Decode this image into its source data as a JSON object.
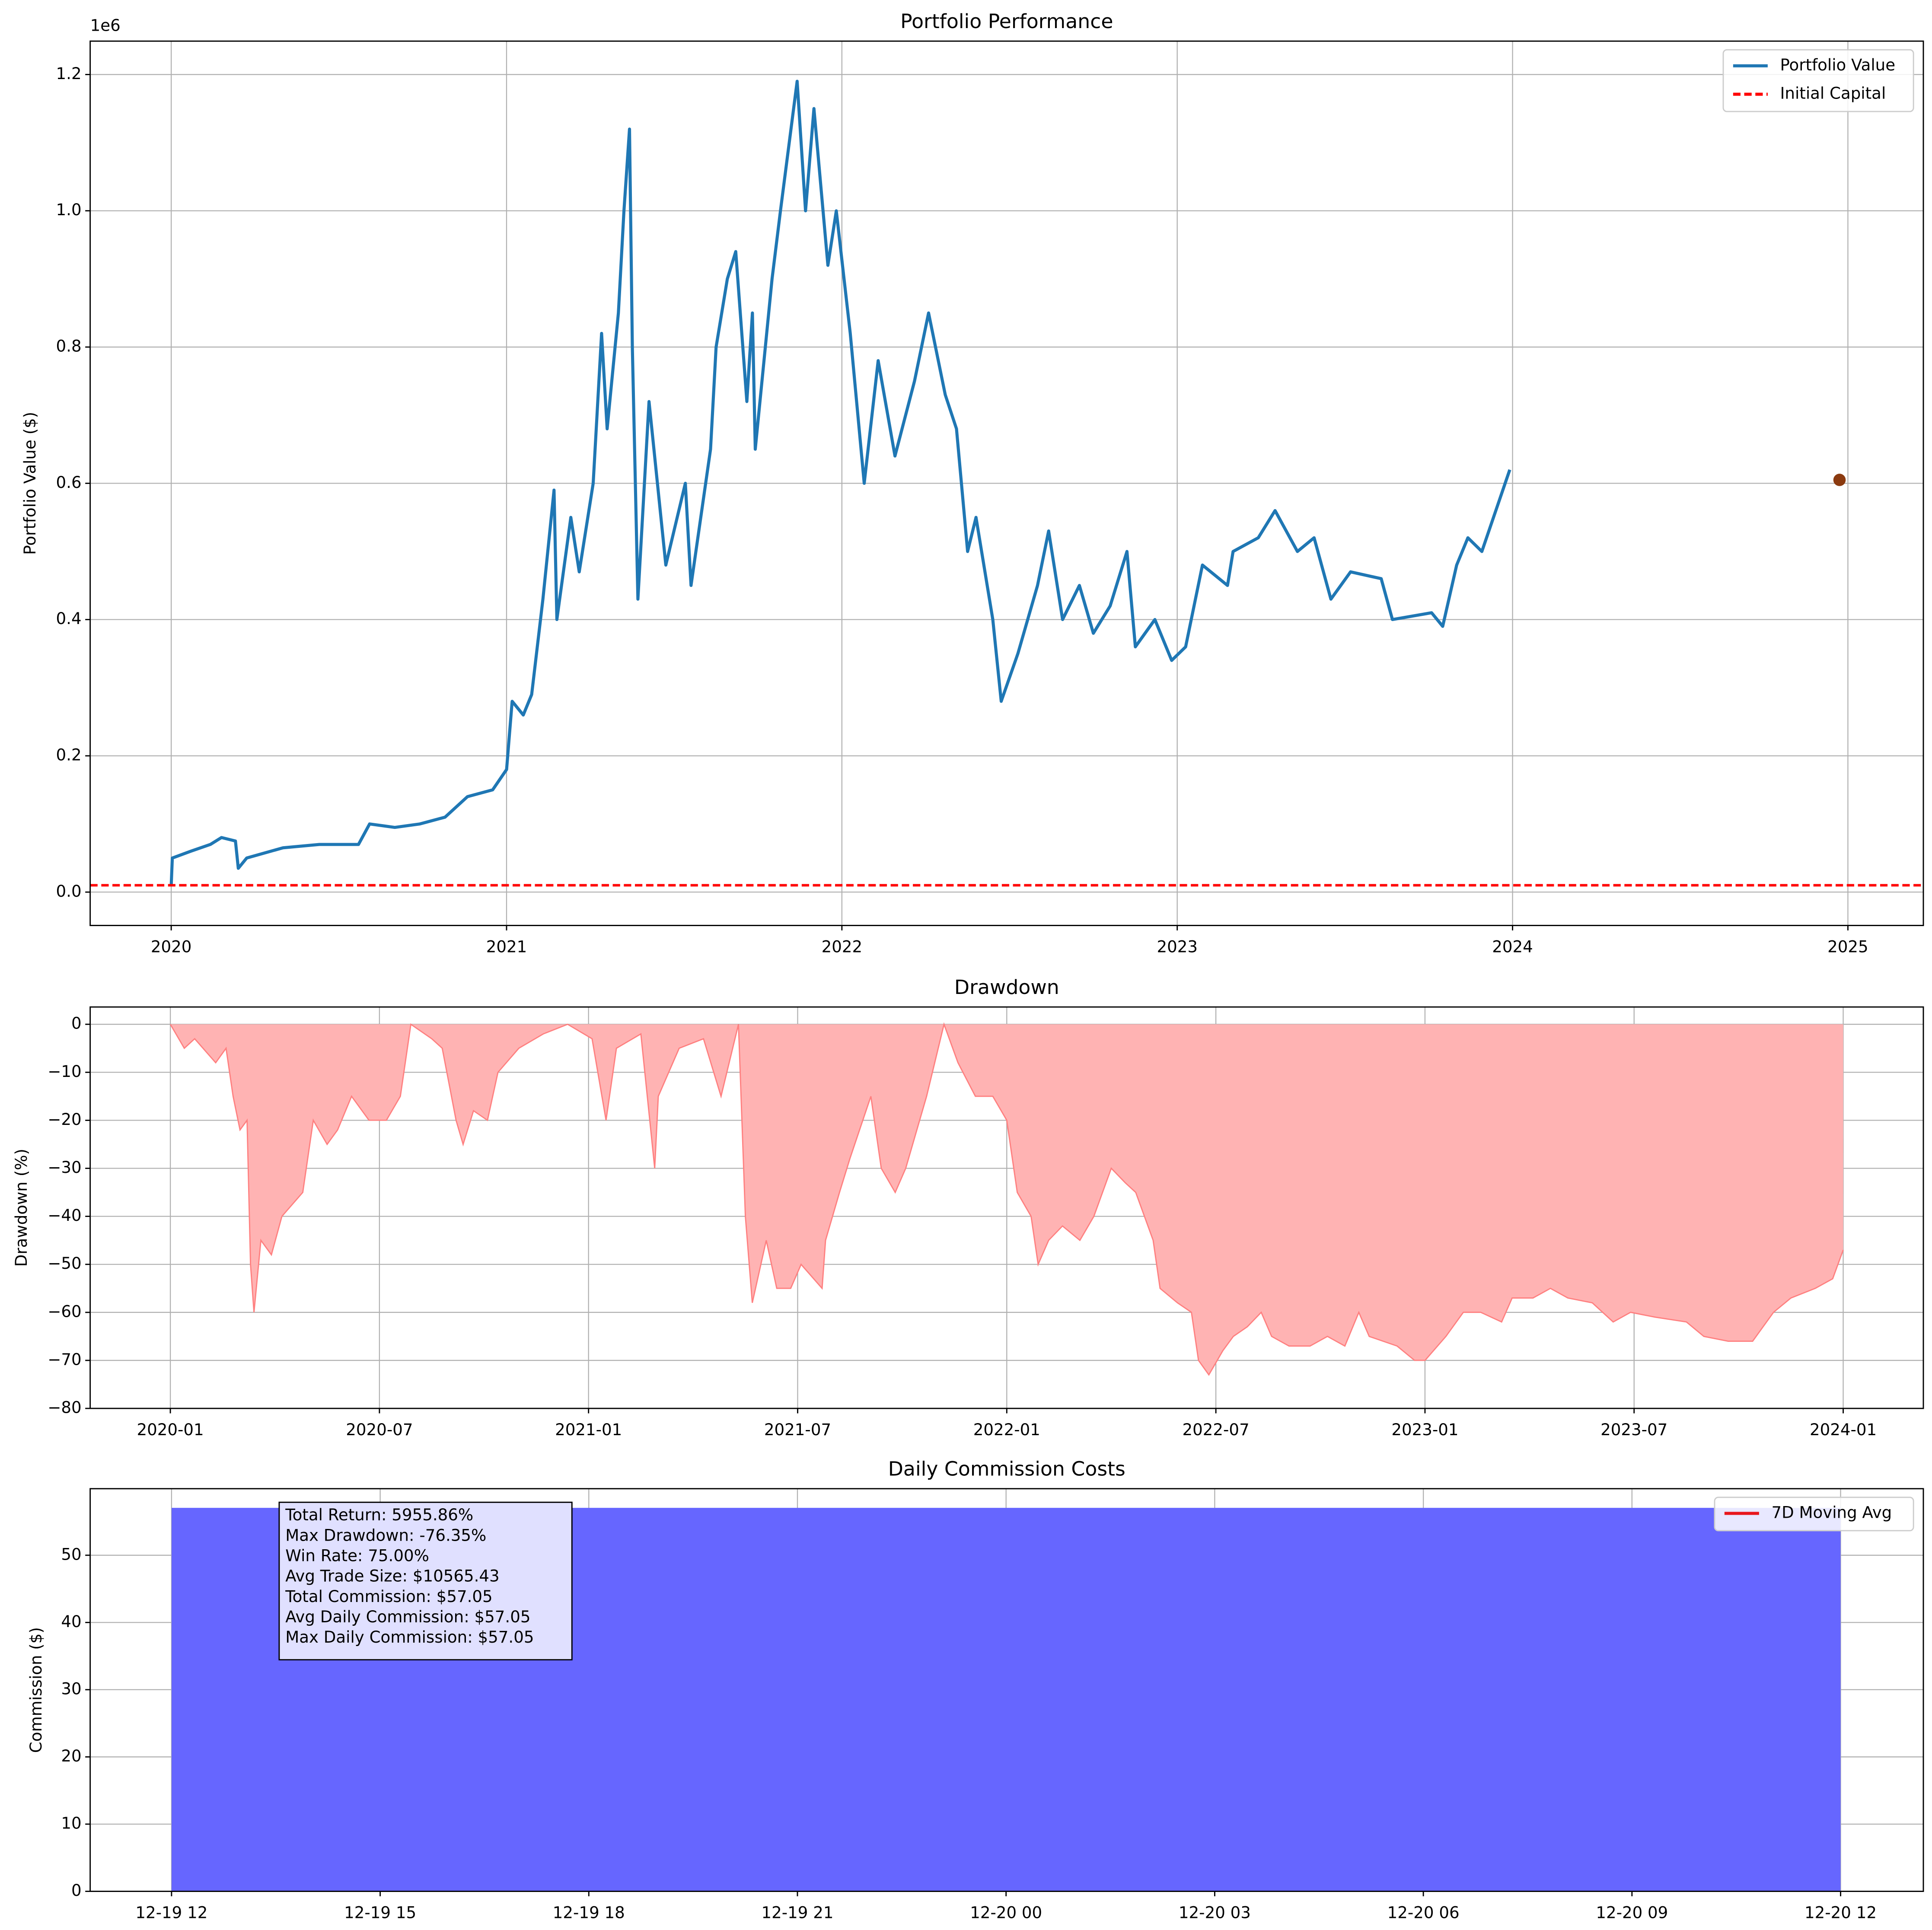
{
  "chart_data": [
    {
      "type": "line",
      "title": "Portfolio Performance",
      "y_label": "Portfolio Value ($)",
      "y_offset_label": "1e6",
      "x": [
        0,
        0.04,
        0.7,
        1.4,
        1.8,
        2.3,
        2.4,
        2.7,
        4.0,
        5.3,
        6.7,
        7.1,
        8.0,
        8.9,
        9.8,
        10.6,
        11.5,
        12.0,
        12.2,
        12.6,
        12.9,
        13.3,
        13.7,
        13.8,
        14.3,
        14.6,
        15.1,
        15.4,
        15.6,
        16.0,
        16.2,
        16.4,
        16.5,
        16.7,
        17.1,
        17.7,
        18.4,
        18.6,
        19.3,
        19.5,
        19.9,
        20.2,
        20.6,
        20.8,
        20.9,
        21.5,
        21.8,
        22.4,
        22.7,
        23.0,
        23.5,
        23.8,
        24.3,
        24.8,
        25.3,
        25.9,
        26.6,
        27.1,
        27.7,
        28.1,
        28.5,
        28.8,
        29.4,
        29.7,
        30.3,
        31.0,
        31.4,
        31.9,
        32.5,
        33.0,
        33.6,
        34.2,
        34.5,
        35.2,
        35.8,
        36.3,
        36.9,
        37.8,
        38.0,
        38.9,
        39.5,
        40.3,
        40.9,
        41.5,
        42.2,
        43.3,
        43.7,
        45.1,
        45.5,
        46.0,
        46.4,
        46.9,
        47.4,
        47.9
      ],
      "series": [
        {
          "name": "Portfolio Value",
          "color": "#1f77b4",
          "values": [
            10000,
            50000,
            60000,
            70000,
            80000,
            75000,
            35000,
            50000,
            65000,
            70000,
            70000,
            100000,
            95000,
            100000,
            110000,
            140000,
            150000,
            180000,
            280000,
            260000,
            290000,
            430000,
            590000,
            400000,
            550000,
            470000,
            600000,
            820000,
            680000,
            850000,
            1000000,
            1120000,
            800000,
            430000,
            720000,
            480000,
            600000,
            450000,
            650000,
            800000,
            900000,
            940000,
            720000,
            850000,
            650000,
            900000,
            1000000,
            1190000,
            1000000,
            1150000,
            920000,
            1000000,
            820000,
            600000,
            780000,
            640000,
            750000,
            850000,
            730000,
            680000,
            500000,
            550000,
            400000,
            280000,
            350000,
            450000,
            530000,
            400000,
            450000,
            380000,
            420000,
            500000,
            360000,
            400000,
            340000,
            360000,
            480000,
            450000,
            500000,
            520000,
            560000,
            500000,
            520000,
            430000,
            470000,
            460000,
            400000,
            410000,
            390000,
            480000,
            520000,
            500000,
            560000,
            620000
          ]
        },
        {
          "name": "Initial Capital",
          "color": "#ff0000",
          "line_style": "dashed",
          "y_value": 10000
        }
      ],
      "points": [
        {
          "x": 59.7,
          "y": 605000,
          "color": "#8b3a0f"
        }
      ],
      "xlim": [
        -2.9,
        62.7
      ],
      "xticks": [
        {
          "value": 0,
          "label": "2020"
        },
        {
          "value": 12,
          "label": "2021"
        },
        {
          "value": 24,
          "label": "2022"
        },
        {
          "value": 36,
          "label": "2023"
        },
        {
          "value": 48,
          "label": "2024"
        },
        {
          "value": 60,
          "label": "2025"
        }
      ],
      "ylim": [
        -49000,
        1249000
      ],
      "yticks": [
        {
          "value": 0,
          "label": "0.0"
        },
        {
          "value": 200000,
          "label": "0.2"
        },
        {
          "value": 400000,
          "label": "0.4"
        },
        {
          "value": 600000,
          "label": "0.6"
        },
        {
          "value": 800000,
          "label": "0.8"
        },
        {
          "value": 1000000,
          "label": "1.0"
        },
        {
          "value": 1200000,
          "label": "1.2"
        }
      ],
      "grid": true,
      "legend": "upper right"
    },
    {
      "type": "area",
      "title": "Drawdown",
      "y_label": "Drawdown (%)",
      "x": [
        0,
        0.4,
        0.7,
        1.3,
        1.6,
        1.8,
        2.0,
        2.2,
        2.3,
        2.4,
        2.6,
        2.9,
        3.2,
        3.8,
        4.1,
        4.5,
        4.8,
        5.2,
        5.7,
        6.2,
        6.6,
        6.9,
        7.5,
        7.8,
        8.2,
        8.4,
        8.7,
        9.1,
        9.4,
        10.0,
        10.7,
        11.4,
        12.1,
        12.5,
        12.8,
        13.5,
        13.9,
        14.0,
        14.6,
        15.3,
        15.8,
        16.3,
        16.5,
        16.7,
        17.1,
        17.4,
        17.8,
        18.1,
        18.7,
        18.8,
        19.2,
        19.5,
        20.1,
        20.4,
        20.8,
        21.1,
        21.7,
        22.2,
        22.6,
        23.1,
        23.6,
        24.0,
        24.3,
        24.7,
        24.9,
        25.2,
        25.6,
        26.1,
        26.5,
        27.0,
        27.4,
        27.7,
        28.2,
        28.4,
        28.9,
        29.3,
        29.5,
        29.8,
        30.2,
        30.5,
        30.9,
        31.3,
        31.6,
        32.1,
        32.7,
        33.2,
        33.7,
        34.1,
        34.4,
        35.2,
        35.7,
        36.0,
        36.6,
        37.1,
        37.6,
        38.2,
        38.5,
        39.1,
        39.6,
        40.1,
        40.8,
        41.4,
        41.9,
        42.6,
        43.5,
        44.0,
        44.7,
        45.4,
        46.0,
        46.5,
        47.2,
        47.7,
        48.0
      ],
      "series": [
        {
          "name": "Drawdown",
          "color": "#ff8080",
          "fill": "#ffb3b3",
          "values": [
            0,
            -5,
            -3,
            -8,
            -5,
            -15,
            -22,
            -20,
            -50,
            -60,
            -45,
            -48,
            -40,
            -35,
            -20,
            -25,
            -22,
            -15,
            -20,
            -20,
            -15,
            0,
            -3,
            -5,
            -20,
            -25,
            -18,
            -20,
            -10,
            -5,
            -2,
            0,
            -3,
            -20,
            -5,
            -2,
            -30,
            -15,
            -5,
            -3,
            -15,
            0,
            -40,
            -58,
            -45,
            -55,
            -55,
            -50,
            -55,
            -45,
            -35,
            -28,
            -15,
            -30,
            -35,
            -30,
            -15,
            0,
            -8,
            -15,
            -15,
            -20,
            -35,
            -40,
            -50,
            -45,
            -42,
            -45,
            -40,
            -30,
            -33,
            -35,
            -45,
            -55,
            -58,
            -60,
            -70,
            -73,
            -68,
            -65,
            -63,
            -60,
            -65,
            -67,
            -67,
            -65,
            -67,
            -60,
            -65,
            -67,
            -70,
            -70,
            -65,
            -60,
            -60,
            -62,
            -57,
            -57,
            -55,
            -57,
            -58,
            -62,
            -60,
            -61,
            -62,
            -65,
            -66,
            -66,
            -60,
            -57,
            -55,
            -53,
            -47
          ]
        }
      ],
      "xlim": [
        -2.3,
        50.3
      ],
      "xticks": [
        {
          "value": 0,
          "label": "2020-01"
        },
        {
          "value": 6,
          "label": "2020-07"
        },
        {
          "value": 12,
          "label": "2021-01"
        },
        {
          "value": 18,
          "label": "2021-07"
        },
        {
          "value": 24,
          "label": "2022-01"
        },
        {
          "value": 30,
          "label": "2022-07"
        },
        {
          "value": 36,
          "label": "2023-01"
        },
        {
          "value": 42,
          "label": "2023-07"
        },
        {
          "value": 48,
          "label": "2024-01"
        }
      ],
      "ylim": [
        -80,
        3.6
      ],
      "yticks": [
        0,
        {
          "value": -10,
          "label": "−10"
        },
        {
          "value": -20,
          "label": "−20"
        },
        {
          "value": -30,
          "label": "−30"
        },
        {
          "value": -40,
          "label": "−40"
        },
        {
          "value": -50,
          "label": "−50"
        },
        {
          "value": -60,
          "label": "−60"
        },
        {
          "value": -70,
          "label": "−70"
        },
        {
          "value": -80,
          "label": "−80"
        }
      ],
      "grid": true
    },
    {
      "type": "histogram",
      "title": "Daily Commission Costs",
      "y_label": "Commission ($)",
      "bins": [
        12,
        36
      ],
      "values": [
        57.05
      ],
      "color": "#6666ff",
      "legend_entries": [
        {
          "name": "7D Moving Avg",
          "color": "#e8161c"
        }
      ],
      "stats_box": [
        "Total Return: 5955.86%",
        "Max Drawdown: -76.35%",
        "Win Rate: 75.00%",
        "Avg Trade Size: $10565.43",
        "Total Commission: $57.05",
        "Avg Daily Commission: $57.05",
        "Max Daily Commission: $57.05"
      ],
      "xlim": [
        10.83,
        37.19
      ],
      "xticks": [
        {
          "value": 12,
          "label": "12-19 12"
        },
        {
          "value": 15,
          "label": "12-19 15"
        },
        {
          "value": 18,
          "label": "12-19 18"
        },
        {
          "value": 21,
          "label": "12-19 21"
        },
        {
          "value": 24,
          "label": "12-20 00"
        },
        {
          "value": 27,
          "label": "12-20 03"
        },
        {
          "value": 30,
          "label": "12-20 06"
        },
        {
          "value": 33,
          "label": "12-20 09"
        },
        {
          "value": 36,
          "label": "12-20 12"
        }
      ],
      "ylim": [
        0,
        59.9
      ],
      "yticks": [
        0,
        10,
        20,
        30,
        40,
        50
      ],
      "grid": true,
      "legend": "upper right"
    }
  ]
}
